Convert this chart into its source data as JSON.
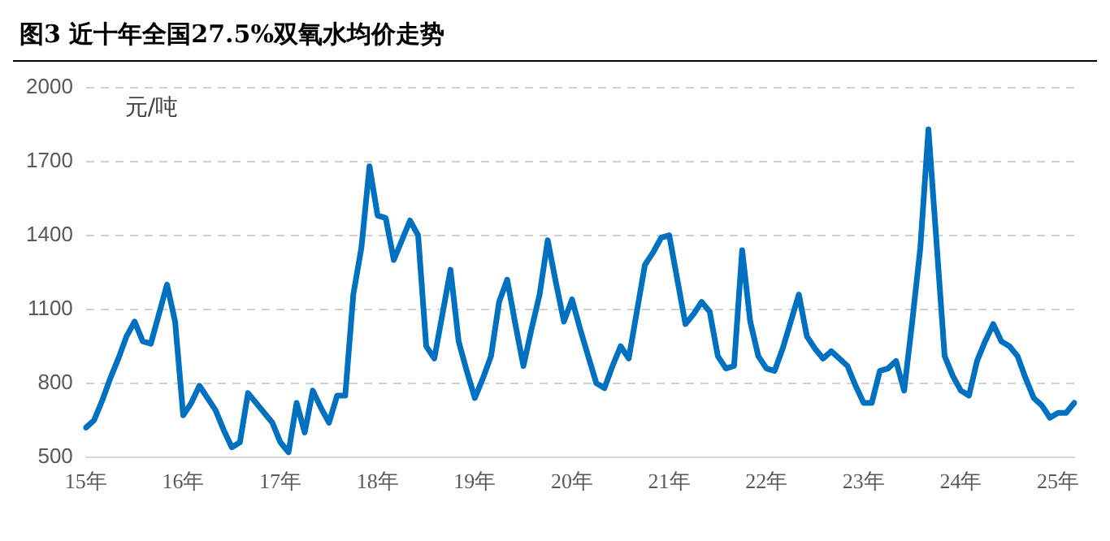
{
  "chart_data": {
    "type": "line",
    "title": "图3 近十年全国27.5%双氧水均价走势",
    "ylabel": "元/吨",
    "categories": [
      "15年",
      null,
      null,
      null,
      null,
      null,
      null,
      null,
      null,
      null,
      null,
      null,
      "16年",
      null,
      null,
      null,
      null,
      null,
      null,
      null,
      null,
      null,
      null,
      null,
      "17年",
      null,
      null,
      null,
      null,
      null,
      null,
      null,
      null,
      null,
      null,
      null,
      "18年",
      null,
      null,
      null,
      null,
      null,
      null,
      null,
      null,
      null,
      null,
      null,
      "19年",
      null,
      null,
      null,
      null,
      null,
      null,
      null,
      null,
      null,
      null,
      null,
      "20年",
      null,
      null,
      null,
      null,
      null,
      null,
      null,
      null,
      null,
      null,
      null,
      "21年",
      null,
      null,
      null,
      null,
      null,
      null,
      null,
      null,
      null,
      null,
      null,
      "22年",
      null,
      null,
      null,
      null,
      null,
      null,
      null,
      null,
      null,
      null,
      null,
      "23年",
      null,
      null,
      null,
      null,
      null,
      null,
      null,
      null,
      null,
      null,
      null,
      "24年",
      null,
      null,
      null,
      null,
      null,
      null,
      null,
      null,
      null,
      null,
      null,
      "25年",
      null,
      null
    ],
    "series": [
      {
        "color": "#0070c0",
        "values": [
          620,
          650,
          730,
          820,
          900,
          990,
          1050,
          970,
          960,
          1080,
          1200,
          1050,
          670,
          720,
          790,
          740,
          690,
          610,
          540,
          560,
          760,
          720,
          680,
          640,
          560,
          520,
          720,
          600,
          770,
          700,
          640,
          750,
          750,
          1160,
          1350,
          1680,
          1480,
          1470,
          1300,
          1380,
          1460,
          1400,
          950,
          900,
          1080,
          1260,
          970,
          850,
          740,
          820,
          910,
          1130,
          1220,
          1040,
          870,
          1020,
          1160,
          1380,
          1210,
          1050,
          1140,
          1020,
          910,
          800,
          780,
          870,
          950,
          900,
          1090,
          1280,
          1330,
          1390,
          1400,
          1220,
          1040,
          1080,
          1130,
          1090,
          910,
          860,
          870,
          1340,
          1050,
          910,
          860,
          850,
          940,
          1050,
          1160,
          990,
          940,
          900,
          930,
          900,
          870,
          790,
          720,
          720,
          850,
          860,
          890,
          770,
          1050,
          1350,
          1830,
          1370,
          910,
          830,
          770,
          750,
          890,
          970,
          1040,
          970,
          950,
          910,
          820,
          740,
          710,
          660,
          680,
          680,
          720
        ]
      }
    ],
    "ylim": [
      500,
      2000
    ],
    "yticks": [
      500,
      800,
      1100,
      1400,
      1700,
      2000
    ],
    "grid": "y",
    "line_style": "solid",
    "marker": "none"
  }
}
